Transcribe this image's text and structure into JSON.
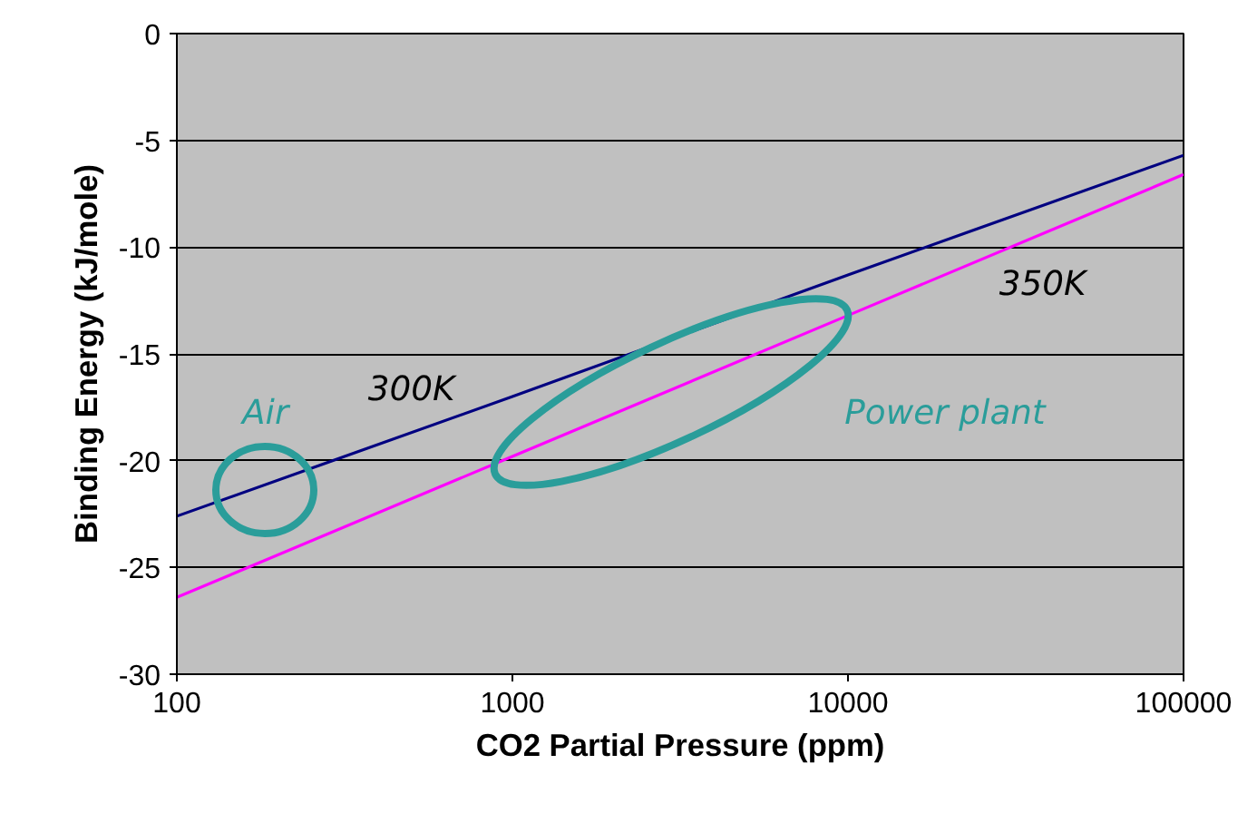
{
  "chart_data": {
    "type": "line",
    "xlabel": "CO2 Partial Pressure (ppm)",
    "ylabel": "Binding Energy (kJ/mole)",
    "x": [
      100,
      1000,
      10000,
      100000
    ],
    "series": [
      {
        "name": "300K",
        "color": "#000080",
        "values": [
          -22.6,
          -17.0,
          -11.3,
          -5.7
        ]
      },
      {
        "name": "350K",
        "color": "#ff00ff",
        "values": [
          -26.4,
          -19.8,
          -13.2,
          -6.6
        ]
      }
    ],
    "log": "x",
    "xlim": [
      100,
      100000
    ],
    "xticks": [
      100,
      1000,
      10000,
      100000
    ],
    "ylim": [
      -30,
      0
    ],
    "yticks": [
      -30,
      -25,
      -20,
      -15,
      -10,
      -5,
      0
    ],
    "grid": "y",
    "marker": "none",
    "line_style": "solid",
    "annotations": [
      "Air",
      "Power plant"
    ]
  }
}
